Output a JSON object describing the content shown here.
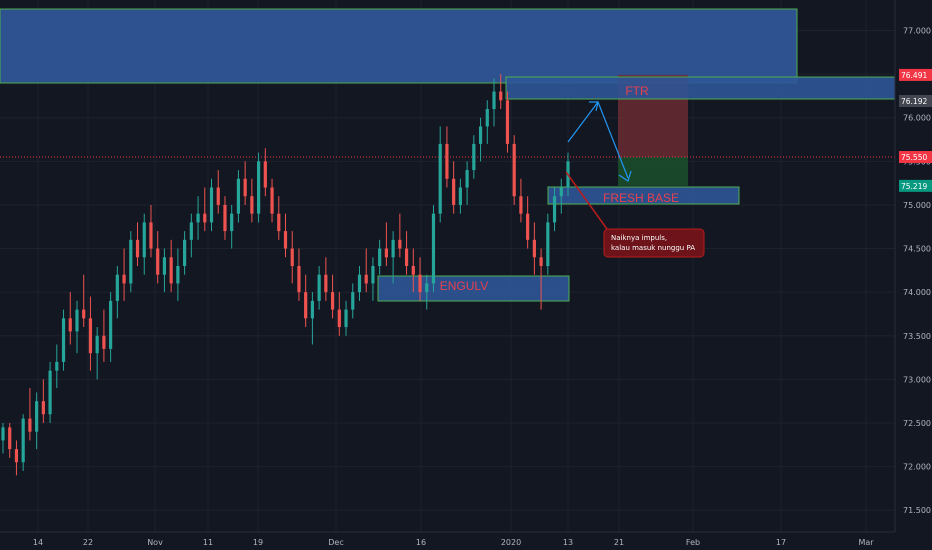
{
  "chart_data": {
    "type": "candlestick",
    "instrument_hint": "",
    "x_ticks": [
      "14",
      "22",
      "Nov",
      "11",
      "19",
      "Dec",
      "16",
      "2020",
      "13",
      "21",
      "Feb",
      "17",
      "Mar"
    ],
    "y_ticks": [
      "77.000",
      "76.500",
      "76.000",
      "75.500",
      "75.000",
      "74.500",
      "74.000",
      "73.500",
      "73.000",
      "72.500",
      "72.000",
      "71.500"
    ],
    "ylim": [
      71.25,
      77.35
    ],
    "price_labels": [
      {
        "value": "76.491",
        "color": "#f23645"
      },
      {
        "value": "76.192",
        "color": "#434651"
      },
      {
        "value": "75.550",
        "color": "#f23645"
      },
      {
        "value": "75.219",
        "color": "#089981"
      }
    ],
    "candles_ohlc_by_index": [
      [
        72.3,
        72.5,
        72.15,
        72.45
      ],
      [
        72.45,
        72.5,
        72.1,
        72.2
      ],
      [
        72.2,
        72.3,
        71.9,
        72.05
      ],
      [
        72.05,
        72.6,
        71.95,
        72.55
      ],
      [
        72.55,
        72.9,
        72.3,
        72.4
      ],
      [
        72.4,
        72.85,
        72.2,
        72.75
      ],
      [
        72.75,
        73.0,
        72.5,
        72.6
      ],
      [
        72.6,
        73.2,
        72.5,
        73.1
      ],
      [
        73.1,
        73.4,
        72.9,
        73.2
      ],
      [
        73.2,
        73.8,
        73.1,
        73.7
      ],
      [
        73.7,
        74.0,
        73.4,
        73.55
      ],
      [
        73.55,
        73.9,
        73.3,
        73.8
      ],
      [
        73.8,
        74.2,
        73.6,
        73.7
      ],
      [
        73.7,
        73.95,
        73.1,
        73.3
      ],
      [
        73.3,
        73.6,
        73.0,
        73.5
      ],
      [
        73.5,
        73.8,
        73.2,
        73.35
      ],
      [
        73.35,
        74.0,
        73.2,
        73.9
      ],
      [
        73.9,
        74.3,
        73.7,
        74.2
      ],
      [
        74.2,
        74.5,
        73.9,
        74.1
      ],
      [
        74.1,
        74.7,
        74.0,
        74.6
      ],
      [
        74.6,
        74.8,
        74.3,
        74.4
      ],
      [
        74.4,
        74.9,
        74.2,
        74.8
      ],
      [
        74.8,
        75.0,
        74.4,
        74.5
      ],
      [
        74.5,
        74.7,
        74.1,
        74.2
      ],
      [
        74.2,
        74.5,
        74.0,
        74.4
      ],
      [
        74.4,
        74.6,
        74.0,
        74.1
      ],
      [
        74.1,
        74.5,
        73.9,
        74.3
      ],
      [
        74.3,
        74.7,
        74.2,
        74.6
      ],
      [
        74.6,
        74.9,
        74.4,
        74.8
      ],
      [
        74.8,
        75.1,
        74.6,
        74.9
      ],
      [
        74.9,
        75.2,
        74.7,
        74.8
      ],
      [
        74.8,
        75.3,
        74.7,
        75.2
      ],
      [
        75.2,
        75.4,
        74.9,
        75.0
      ],
      [
        75.0,
        75.1,
        74.6,
        74.7
      ],
      [
        74.7,
        75.0,
        74.5,
        74.9
      ],
      [
        74.9,
        75.4,
        74.8,
        75.3
      ],
      [
        75.3,
        75.5,
        75.0,
        75.1
      ],
      [
        75.1,
        75.3,
        74.8,
        74.9
      ],
      [
        74.9,
        75.6,
        74.8,
        75.5
      ],
      [
        75.5,
        75.65,
        75.1,
        75.2
      ],
      [
        75.2,
        75.3,
        74.8,
        74.9
      ],
      [
        74.9,
        75.1,
        74.6,
        74.7
      ],
      [
        74.7,
        74.9,
        74.4,
        74.5
      ],
      [
        74.5,
        74.7,
        74.1,
        74.3
      ],
      [
        74.3,
        74.5,
        73.9,
        74.0
      ],
      [
        74.0,
        74.2,
        73.6,
        73.7
      ],
      [
        73.7,
        74.0,
        73.4,
        73.9
      ],
      [
        73.9,
        74.3,
        73.8,
        74.2
      ],
      [
        74.2,
        74.4,
        73.9,
        74.0
      ],
      [
        74.0,
        74.2,
        73.7,
        73.8
      ],
      [
        73.8,
        74.0,
        73.5,
        73.6
      ],
      [
        73.6,
        73.9,
        73.5,
        73.8
      ],
      [
        73.8,
        74.1,
        73.7,
        74.0
      ],
      [
        74.0,
        74.3,
        73.9,
        74.2
      ],
      [
        74.2,
        74.5,
        74.0,
        74.1
      ],
      [
        74.1,
        74.4,
        73.9,
        74.3
      ],
      [
        74.3,
        74.6,
        74.2,
        74.5
      ],
      [
        74.5,
        74.8,
        74.3,
        74.4
      ],
      [
        74.4,
        74.7,
        74.1,
        74.6
      ],
      [
        74.6,
        74.9,
        74.4,
        74.5
      ],
      [
        74.5,
        74.7,
        74.2,
        74.3
      ],
      [
        74.3,
        74.5,
        74.0,
        74.2
      ],
      [
        74.2,
        74.4,
        73.9,
        74.0
      ],
      [
        74.0,
        74.2,
        73.8,
        74.1
      ],
      [
        74.1,
        75.0,
        74.0,
        74.9
      ],
      [
        74.9,
        75.9,
        74.8,
        75.7
      ],
      [
        75.7,
        75.9,
        75.2,
        75.3
      ],
      [
        75.3,
        75.5,
        74.9,
        75.0
      ],
      [
        75.0,
        75.3,
        74.9,
        75.2
      ],
      [
        75.2,
        75.5,
        75.0,
        75.4
      ],
      [
        75.4,
        75.8,
        75.3,
        75.7
      ],
      [
        75.7,
        76.0,
        75.5,
        75.9
      ],
      [
        75.9,
        76.2,
        75.7,
        76.1
      ],
      [
        76.1,
        76.45,
        75.9,
        76.3
      ],
      [
        76.3,
        76.5,
        76.1,
        76.2
      ],
      [
        76.2,
        76.3,
        75.6,
        75.7
      ],
      [
        75.7,
        75.8,
        75.0,
        75.1
      ],
      [
        75.1,
        75.3,
        74.8,
        74.9
      ],
      [
        74.9,
        75.1,
        74.5,
        74.6
      ],
      [
        74.6,
        74.8,
        74.2,
        74.4
      ],
      [
        74.4,
        74.5,
        73.8,
        74.3
      ],
      [
        74.3,
        74.9,
        74.2,
        74.8
      ],
      [
        74.8,
        75.2,
        74.7,
        75.1
      ],
      [
        75.1,
        75.3,
        74.9,
        75.2
      ],
      [
        75.2,
        75.6,
        75.1,
        75.5
      ]
    ],
    "annotations": {
      "zone_top": {
        "label": ""
      },
      "zone_ftr": {
        "label": "FTR"
      },
      "zone_fresh_base": {
        "label": "FRESH BASE"
      },
      "zone_engulv": {
        "label": "ENGULV"
      },
      "note": {
        "line1": "Naiknya impuls,",
        "line2": "kalau masuk nunggu PA"
      },
      "position": {
        "entry": 75.55,
        "target": 75.219,
        "stop": 76.491
      }
    },
    "colors": {
      "up": "#26a69a",
      "down": "#ef5350",
      "zone_fill": "#2f5597",
      "zone_border": "#4caf50",
      "grid": "#1e222d",
      "axis_text": "#b2b5be",
      "arrow": "#2196f3",
      "note_bg": "#6d1319",
      "profit_fill": "#1b4d2b",
      "loss_fill": "#6b2a33"
    }
  }
}
